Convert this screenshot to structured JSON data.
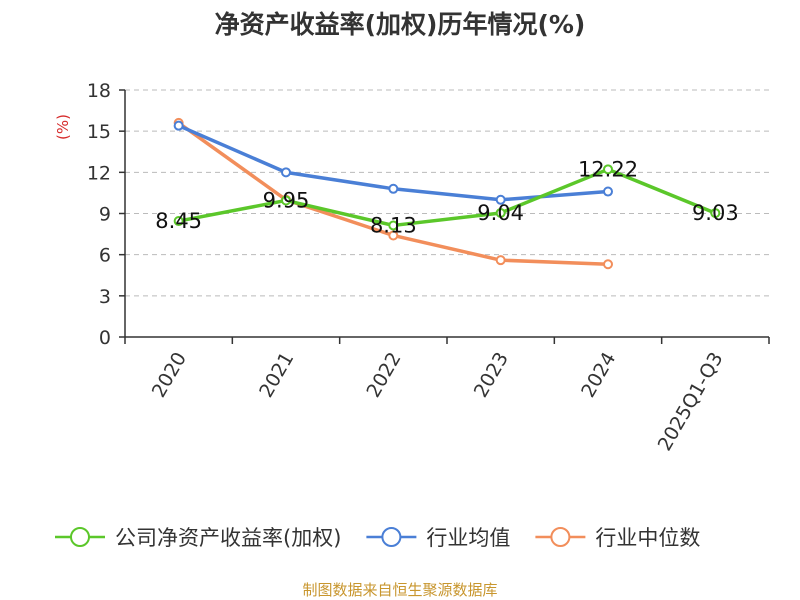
{
  "chart_data": {
    "type": "line",
    "title": "净资产收益率(加权)历年情况(%)",
    "ylabel": "(%)",
    "xlabel": "",
    "categories": [
      "2020",
      "2021",
      "2022",
      "2023",
      "2024",
      "2025Q1-Q3"
    ],
    "ylim": [
      0,
      18
    ],
    "yticks": [
      0,
      3,
      6,
      9,
      12,
      15,
      18
    ],
    "grid": true,
    "legend_position": "bottom",
    "series": [
      {
        "name": "公司净资产收益率(加权)",
        "color": "#5bc72a",
        "values": [
          8.45,
          9.95,
          8.13,
          9.04,
          12.22,
          9.03
        ],
        "labels": [
          "8.45",
          "9.95",
          "8.13",
          "9.04",
          "12.22",
          "9.03"
        ]
      },
      {
        "name": "行业均值",
        "color": "#4a7fd6",
        "values": [
          15.4,
          12.0,
          10.8,
          10.0,
          10.6,
          null
        ]
      },
      {
        "name": "行业中位数",
        "color": "#f28e5b",
        "values": [
          15.6,
          10.0,
          7.4,
          5.6,
          5.3,
          null
        ]
      }
    ]
  },
  "ylabel_color": "#d62b2b",
  "source": {
    "text": "制图数据来自恒生聚源数据库",
    "color": "#c8962e"
  }
}
